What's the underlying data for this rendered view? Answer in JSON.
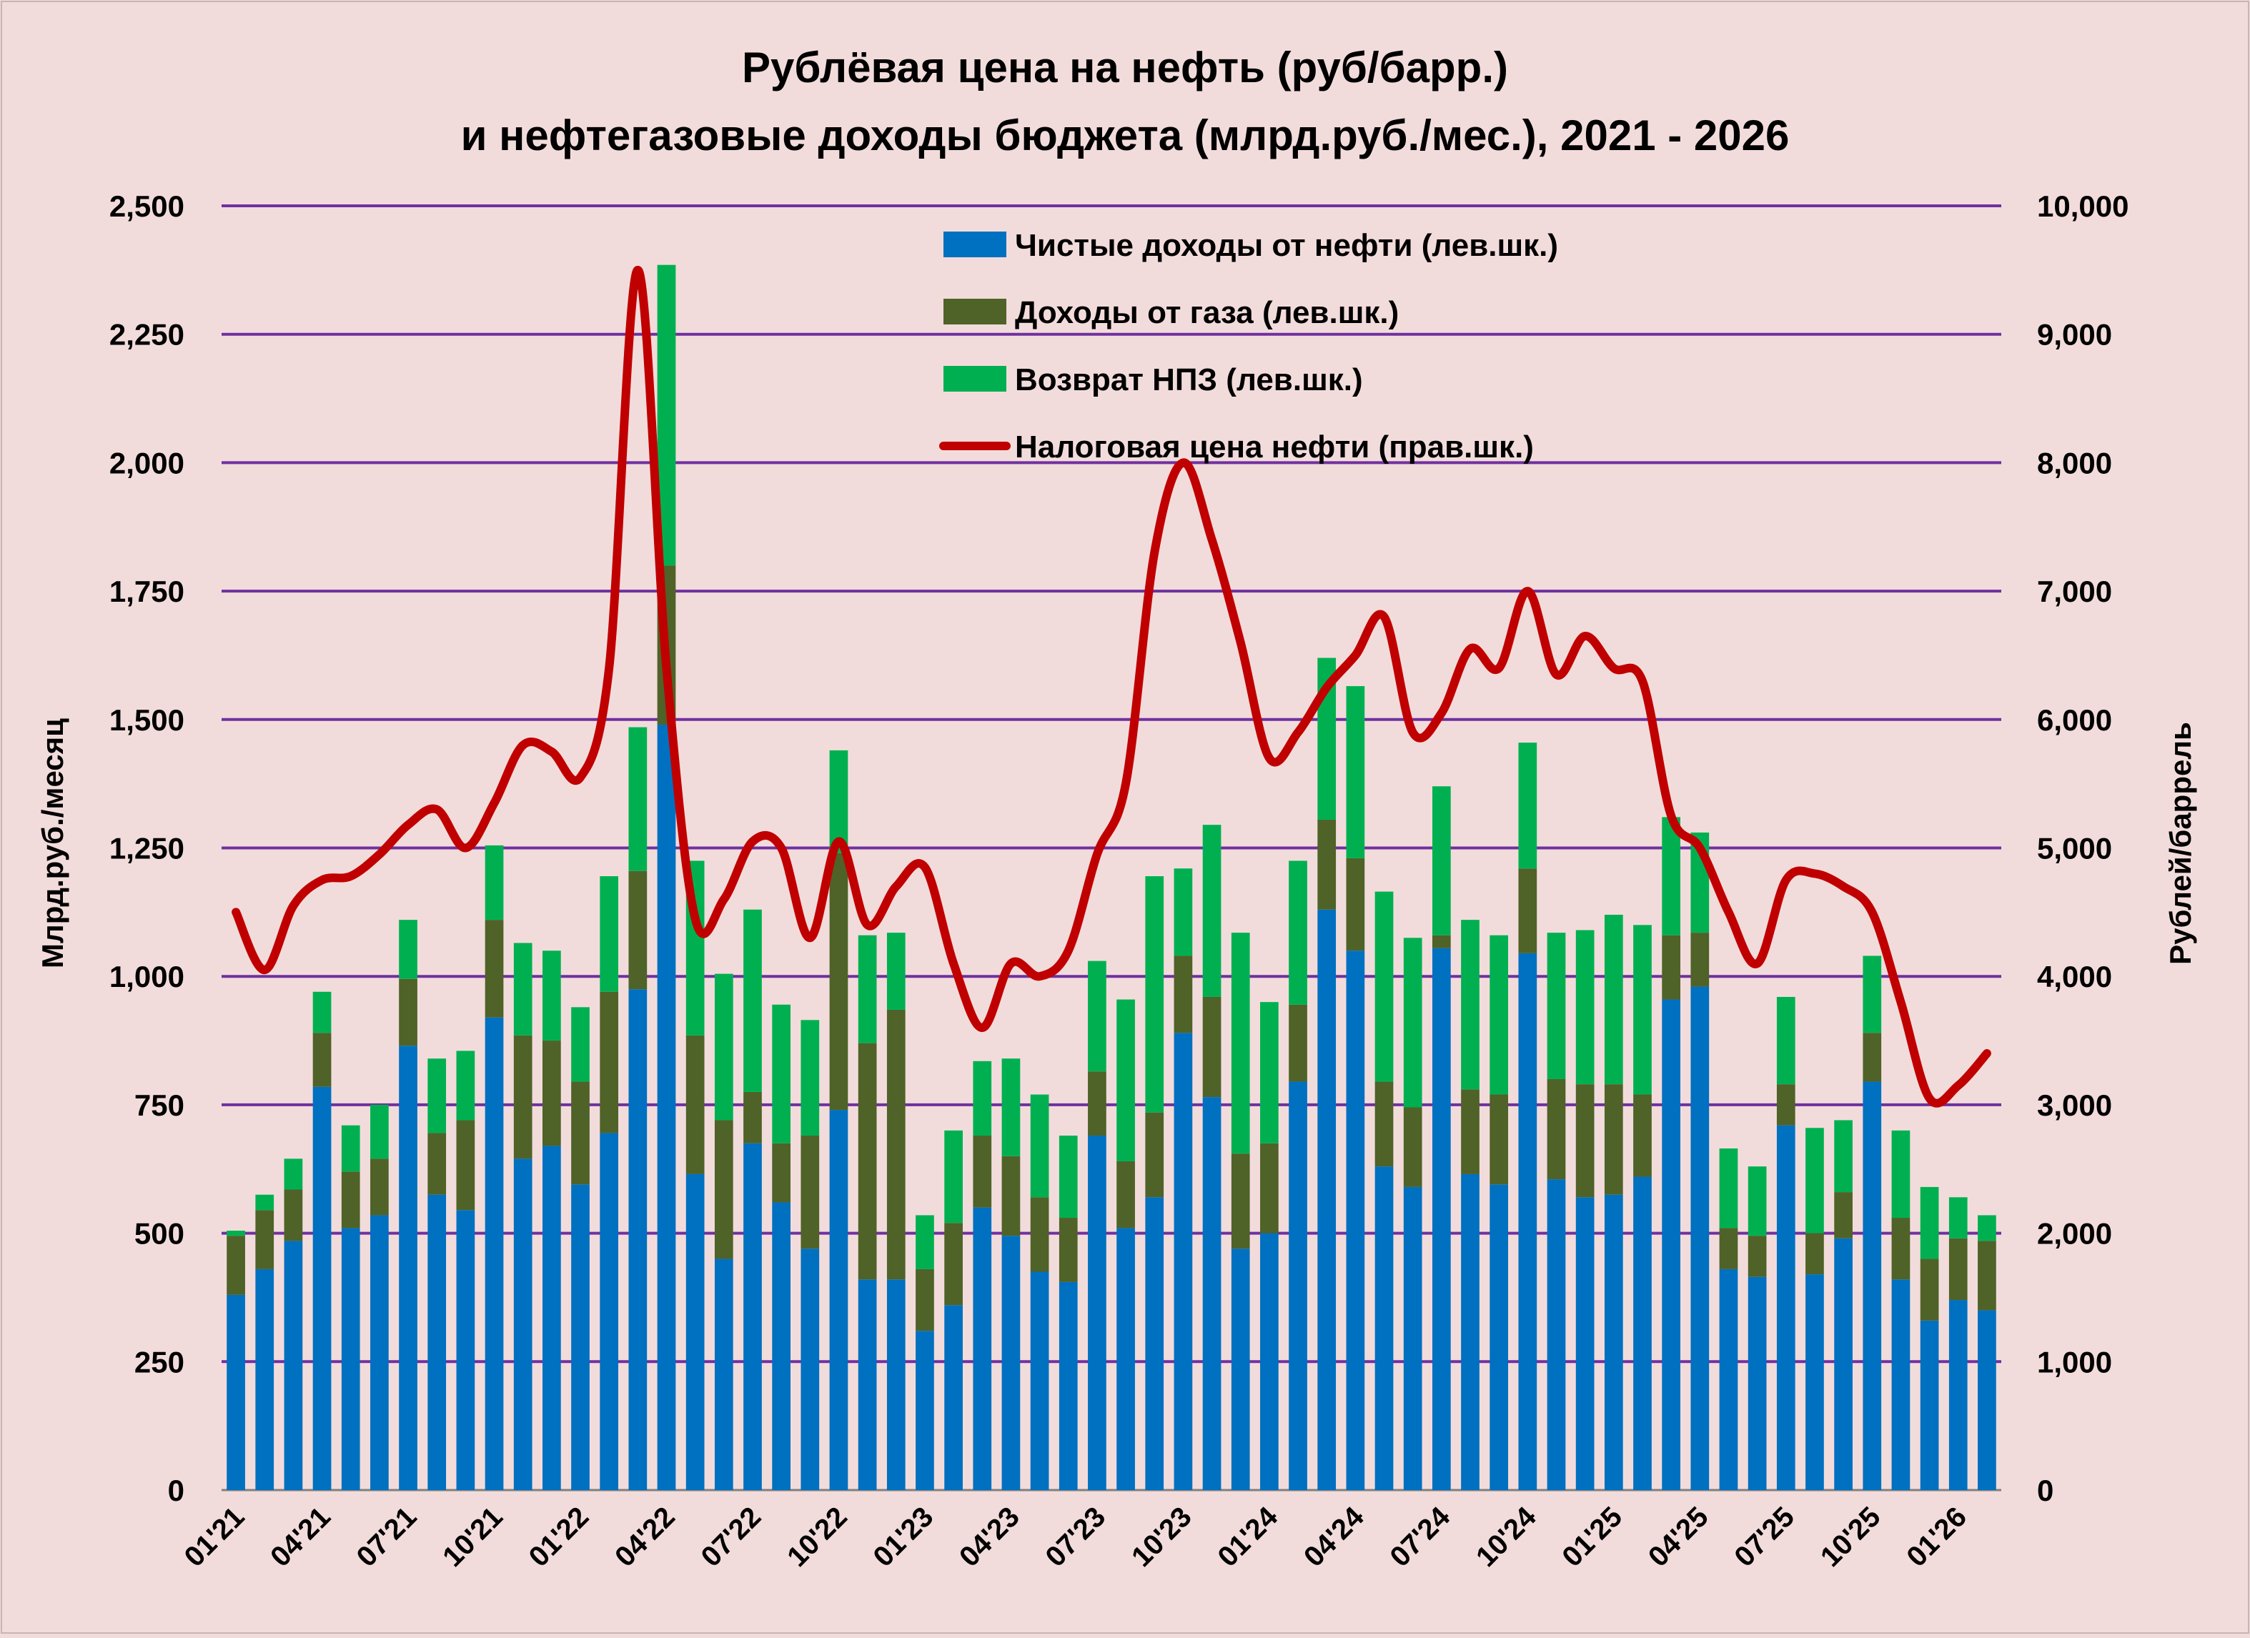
{
  "chart_data": {
    "type": "bar",
    "stacked": true,
    "title": "Рублёвая цена на нефть (руб/барр.)",
    "subtitle": "и нефтегазовые доходы бюджета (млрд.руб./мес.), 2021 - 2026",
    "ylabel": "Млрд.руб./месяц",
    "y2label": "Рублей/баррель",
    "ylim": [
      0,
      2500
    ],
    "y2lim": [
      0,
      10000
    ],
    "yticks": [
      "0",
      "250",
      "500",
      "750",
      "1,000",
      "1,250",
      "1,500",
      "1,750",
      "2,000",
      "2,250",
      "2,500"
    ],
    "y2ticks": [
      "0",
      "1,000",
      "2,000",
      "3,000",
      "4,000",
      "5,000",
      "6,000",
      "7,000",
      "8,000",
      "9,000",
      "10,000"
    ],
    "grid": true,
    "legend_position": "top-right",
    "xtick_labels": [
      "01'21",
      "04'21",
      "07'21",
      "10'21",
      "01'22",
      "04'22",
      "07'22",
      "10'22",
      "01'23",
      "04'23",
      "07'23",
      "10'23",
      "01'24",
      "04'24",
      "07'24",
      "10'24",
      "01'25",
      "04'25",
      "07'25",
      "10'25",
      "01'26"
    ],
    "xtick_positions": [
      0,
      3,
      6,
      9,
      12,
      15,
      18,
      21,
      24,
      27,
      30,
      33,
      36,
      39,
      42,
      45,
      48,
      51,
      54,
      57,
      60
    ],
    "n_periods": 62,
    "series": [
      {
        "name": "Чистые доходы от нефти (лев.шк.)",
        "kind": "bar",
        "axis": "left",
        "color": "#0070c0",
        "values": [
          380,
          430,
          485,
          785,
          510,
          535,
          865,
          575,
          545,
          920,
          645,
          670,
          595,
          695,
          975,
          1490,
          615,
          450,
          675,
          560,
          470,
          740,
          410,
          410,
          310,
          360,
          550,
          495,
          425,
          405,
          690,
          510,
          570,
          890,
          765,
          470,
          500,
          795,
          1130,
          1050,
          630,
          590,
          1055,
          615,
          595,
          1045,
          605,
          570,
          575,
          610,
          955,
          980,
          430,
          415,
          710,
          420,
          490,
          795,
          410,
          330,
          370,
          350
        ]
      },
      {
        "name": "Доходы от газа (лев.шк.)",
        "kind": "bar",
        "axis": "left",
        "color": "#4f6228",
        "values": [
          115,
          115,
          100,
          105,
          110,
          110,
          130,
          120,
          175,
          190,
          240,
          205,
          200,
          275,
          230,
          310,
          270,
          270,
          100,
          115,
          220,
          500,
          460,
          525,
          120,
          160,
          140,
          155,
          145,
          125,
          125,
          130,
          165,
          150,
          195,
          185,
          175,
          150,
          175,
          180,
          165,
          155,
          25,
          165,
          175,
          165,
          195,
          220,
          215,
          160,
          125,
          105,
          80,
          80,
          80,
          80,
          90,
          95,
          120,
          120,
          120,
          135
        ]
      },
      {
        "name": "Возврат НПЗ  (лев.шк.)",
        "kind": "bar",
        "axis": "left",
        "color": "#00b050",
        "values": [
          10,
          30,
          60,
          80,
          90,
          105,
          115,
          145,
          135,
          145,
          180,
          175,
          145,
          225,
          280,
          585,
          340,
          285,
          355,
          270,
          225,
          200,
          210,
          150,
          105,
          180,
          145,
          190,
          200,
          160,
          215,
          315,
          460,
          170,
          335,
          430,
          275,
          280,
          315,
          335,
          370,
          330,
          290,
          330,
          310,
          245,
          285,
          300,
          330,
          330,
          230,
          195,
          155,
          135,
          170,
          205,
          140,
          150,
          170,
          140,
          80,
          50
        ]
      },
      {
        "name": "Налоговая цена нефти (прав.шк.)",
        "kind": "line",
        "axis": "right",
        "color": "#c00000",
        "values": [
          4500,
          4050,
          4550,
          4750,
          4780,
          4950,
          5180,
          5300,
          5000,
          5350,
          5800,
          5750,
          5550,
          6400,
          9500,
          6400,
          4450,
          4600,
          5050,
          5000,
          4300,
          5050,
          4400,
          4700,
          4850,
          4100,
          3600,
          4100,
          4000,
          4200,
          4950,
          5500,
          7300,
          8000,
          7400,
          6600,
          5700,
          5900,
          6250,
          6500,
          6800,
          5900,
          6050,
          6550,
          6400,
          7000,
          6350,
          6650,
          6400,
          6300,
          5250,
          5000,
          4500,
          4100,
          4750,
          4800,
          4700,
          4500,
          3800,
          3050,
          3150,
          3400
        ]
      }
    ]
  }
}
